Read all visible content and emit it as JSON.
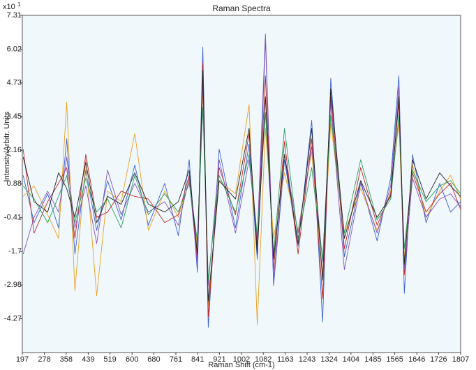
{
  "chart_data": {
    "type": "line",
    "title": "Raman Spectra",
    "x_label": "Raman Shift (cm-1)",
    "y_label": "Intensity/Arbitr. Units",
    "y_multiplier": "x10",
    "y_multiplier_exponent": "1",
    "xlim": [
      197,
      1807
    ],
    "ylim": [
      -5.56,
      7.31
    ],
    "xticks": [
      197,
      278,
      358,
      439,
      519,
      600,
      680,
      761,
      841,
      921,
      1002,
      1082,
      1163,
      1243,
      1324,
      1404,
      1485,
      1565,
      1646,
      1726,
      1807
    ],
    "yticks": [
      7.31,
      6.02,
      4.73,
      3.45,
      2.16,
      0.88,
      -0.41,
      -1.7,
      -2.98,
      -4.27
    ],
    "grid": false,
    "plot_background": "#f0f8fc",
    "x": [
      200,
      240,
      290,
      330,
      360,
      390,
      430,
      470,
      510,
      560,
      610,
      660,
      720,
      770,
      810,
      840,
      860,
      880,
      920,
      980,
      1030,
      1060,
      1090,
      1120,
      1160,
      1210,
      1260,
      1300,
      1330,
      1380,
      1440,
      1500,
      1550,
      1580,
      1600,
      1630,
      1680,
      1730,
      1770,
      1807
    ],
    "series": [
      {
        "color": "#3a5fcd",
        "values": [
          1.2,
          -0.6,
          0.5,
          -0.8,
          2.6,
          -1.8,
          1.4,
          -0.9,
          1.0,
          -0.5,
          1.6,
          -0.7,
          0.9,
          -1.1,
          1.8,
          -2.5,
          6.1,
          -4.6,
          2.2,
          -0.8,
          2.4,
          -2.0,
          6.4,
          -3.0,
          1.8,
          -1.5,
          3.3,
          -4.4,
          4.9,
          -1.9,
          1.0,
          -1.3,
          1.1,
          5.0,
          -3.3,
          2.0,
          -0.6,
          0.9,
          -0.2,
          0.2
        ]
      },
      {
        "color": "#e8a020",
        "values": [
          0.4,
          0.8,
          -0.3,
          -1.2,
          4.0,
          -3.2,
          1.8,
          -3.4,
          0.6,
          0.2,
          2.8,
          -0.9,
          0.6,
          -0.4,
          1.0,
          -1.5,
          4.5,
          -3.8,
          1.0,
          0.5,
          3.9,
          -4.5,
          3.0,
          -1.2,
          1.3,
          -0.9,
          2.1,
          -2.6,
          3.2,
          -1.0,
          0.7,
          -0.9,
          0.6,
          3.2,
          -2.0,
          1.6,
          -0.4,
          0.6,
          1.2,
          0.3
        ]
      },
      {
        "color": "#c0282a",
        "values": [
          2.2,
          -1.0,
          0.2,
          0.9,
          1.5,
          -1.2,
          2.0,
          -0.4,
          -0.2,
          0.6,
          0.4,
          0.3,
          -0.6,
          -0.3,
          1.2,
          -2.0,
          5.5,
          -4.2,
          1.5,
          -0.3,
          2.8,
          -1.5,
          5.0,
          -2.4,
          2.5,
          -1.8,
          2.6,
          -3.5,
          4.2,
          -1.6,
          1.5,
          -0.7,
          0.5,
          4.0,
          -2.6,
          1.3,
          -0.2,
          0.5,
          0.9,
          -0.1
        ]
      },
      {
        "color": "#8a4fb5",
        "values": [
          -1.8,
          -0.4,
          0.6,
          -0.2,
          1.9,
          -0.8,
          0.8,
          -1.4,
          1.4,
          -0.3,
          0.9,
          -0.2,
          0.2,
          -0.7,
          1.1,
          -2.2,
          4.8,
          -3.0,
          1.8,
          -1.0,
          1.8,
          -1.2,
          6.6,
          -2.8,
          2.0,
          -1.0,
          2.3,
          -2.1,
          4.0,
          -2.4,
          0.9,
          -1.0,
          0.8,
          4.6,
          -2.4,
          1.1,
          -0.4,
          0.3,
          0.5,
          0.0
        ]
      },
      {
        "color": "#2a9d5a",
        "values": [
          0.8,
          0.3,
          -0.6,
          0.4,
          1.2,
          -0.6,
          1.1,
          -0.2,
          0.3,
          -0.8,
          1.2,
          -0.3,
          0.5,
          -0.2,
          0.9,
          -1.3,
          3.8,
          -2.8,
          1.2,
          -0.2,
          2.0,
          -1.1,
          3.6,
          -1.8,
          3.0,
          -1.2,
          1.5,
          -2.0,
          3.5,
          -1.0,
          1.8,
          -0.5,
          0.3,
          3.5,
          -1.6,
          1.4,
          0.2,
          0.8,
          1.0,
          0.5
        ]
      },
      {
        "color": "#222222",
        "values": [
          1.9,
          0.2,
          -0.2,
          1.3,
          0.7,
          -0.4,
          1.7,
          -0.6,
          0.4,
          0.1,
          1.3,
          0.1,
          -0.2,
          0.2,
          1.4,
          -1.8,
          5.2,
          -3.6,
          1.0,
          0.3,
          3.0,
          -1.8,
          4.2,
          -2.0,
          2.0,
          -1.4,
          3.0,
          -2.8,
          4.5,
          -1.2,
          1.0,
          -0.4,
          0.4,
          4.2,
          -2.2,
          1.8,
          0.3,
          1.3,
          0.8,
          0.4
        ]
      }
    ]
  }
}
